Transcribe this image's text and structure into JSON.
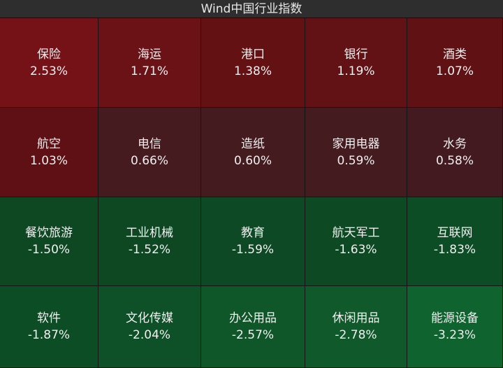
{
  "header": {
    "title": "Wind中国行业指数"
  },
  "tiles": [
    {
      "name": "保险",
      "change": "2.53%",
      "color": "#741217"
    },
    {
      "name": "海运",
      "change": "1.71%",
      "color": "#6a1216"
    },
    {
      "name": "港口",
      "change": "1.38%",
      "color": "#641114"
    },
    {
      "name": "银行",
      "change": "1.19%",
      "color": "#621114"
    },
    {
      "name": "酒类",
      "change": "1.07%",
      "color": "#5f1114"
    },
    {
      "name": "航空",
      "change": "1.03%",
      "color": "#5e1014"
    },
    {
      "name": "电信",
      "change": "0.66%",
      "color": "#461b20"
    },
    {
      "name": "造纸",
      "change": "0.60%",
      "color": "#441b1f"
    },
    {
      "name": "家用电器",
      "change": "0.59%",
      "color": "#441b1f"
    },
    {
      "name": "水务",
      "change": "0.58%",
      "color": "#431a1f"
    },
    {
      "name": "餐饮旅游",
      "change": "-1.50%",
      "color": "#0d4823"
    },
    {
      "name": "工业机械",
      "change": "-1.52%",
      "color": "#0d4823"
    },
    {
      "name": "教育",
      "change": "-1.59%",
      "color": "#0d4924"
    },
    {
      "name": "航天军工",
      "change": "-1.63%",
      "color": "#0d4a24"
    },
    {
      "name": "互联网",
      "change": "-1.83%",
      "color": "#0d4d25"
    },
    {
      "name": "软件",
      "change": "-1.87%",
      "color": "#0d4d25"
    },
    {
      "name": "文化传媒",
      "change": "-2.04%",
      "color": "#0e5027"
    },
    {
      "name": "办公用品",
      "change": "-2.57%",
      "color": "#0f5729"
    },
    {
      "name": "休闲用品",
      "change": "-2.78%",
      "color": "#0f592a"
    },
    {
      "name": "能源设备",
      "change": "-3.23%",
      "color": "#0f632f"
    }
  ]
}
